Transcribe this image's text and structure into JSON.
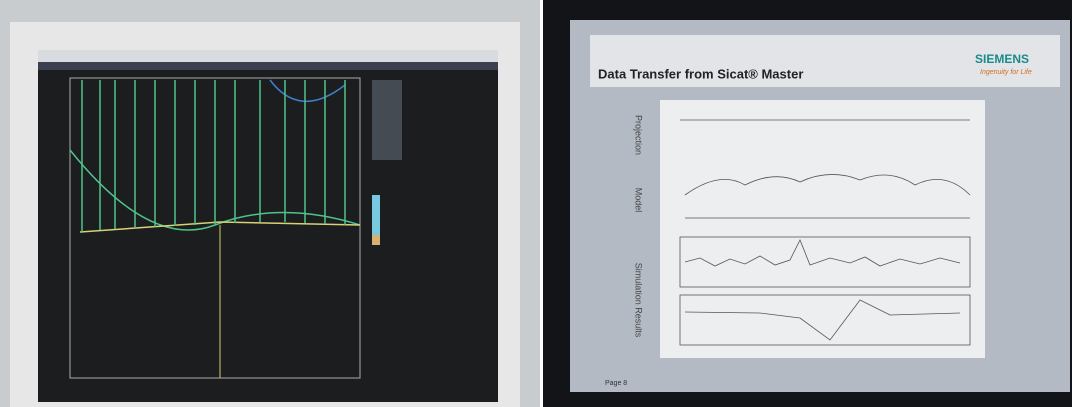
{
  "slide": {
    "title": "Data Transfer from Sicat® Master",
    "logo": "SIEMENS",
    "tagline": "Ingenuity for Life",
    "row_labels": [
      "Projection",
      "Model",
      "Simulation Results"
    ],
    "footer": {
      "page": "Page 8"
    }
  }
}
